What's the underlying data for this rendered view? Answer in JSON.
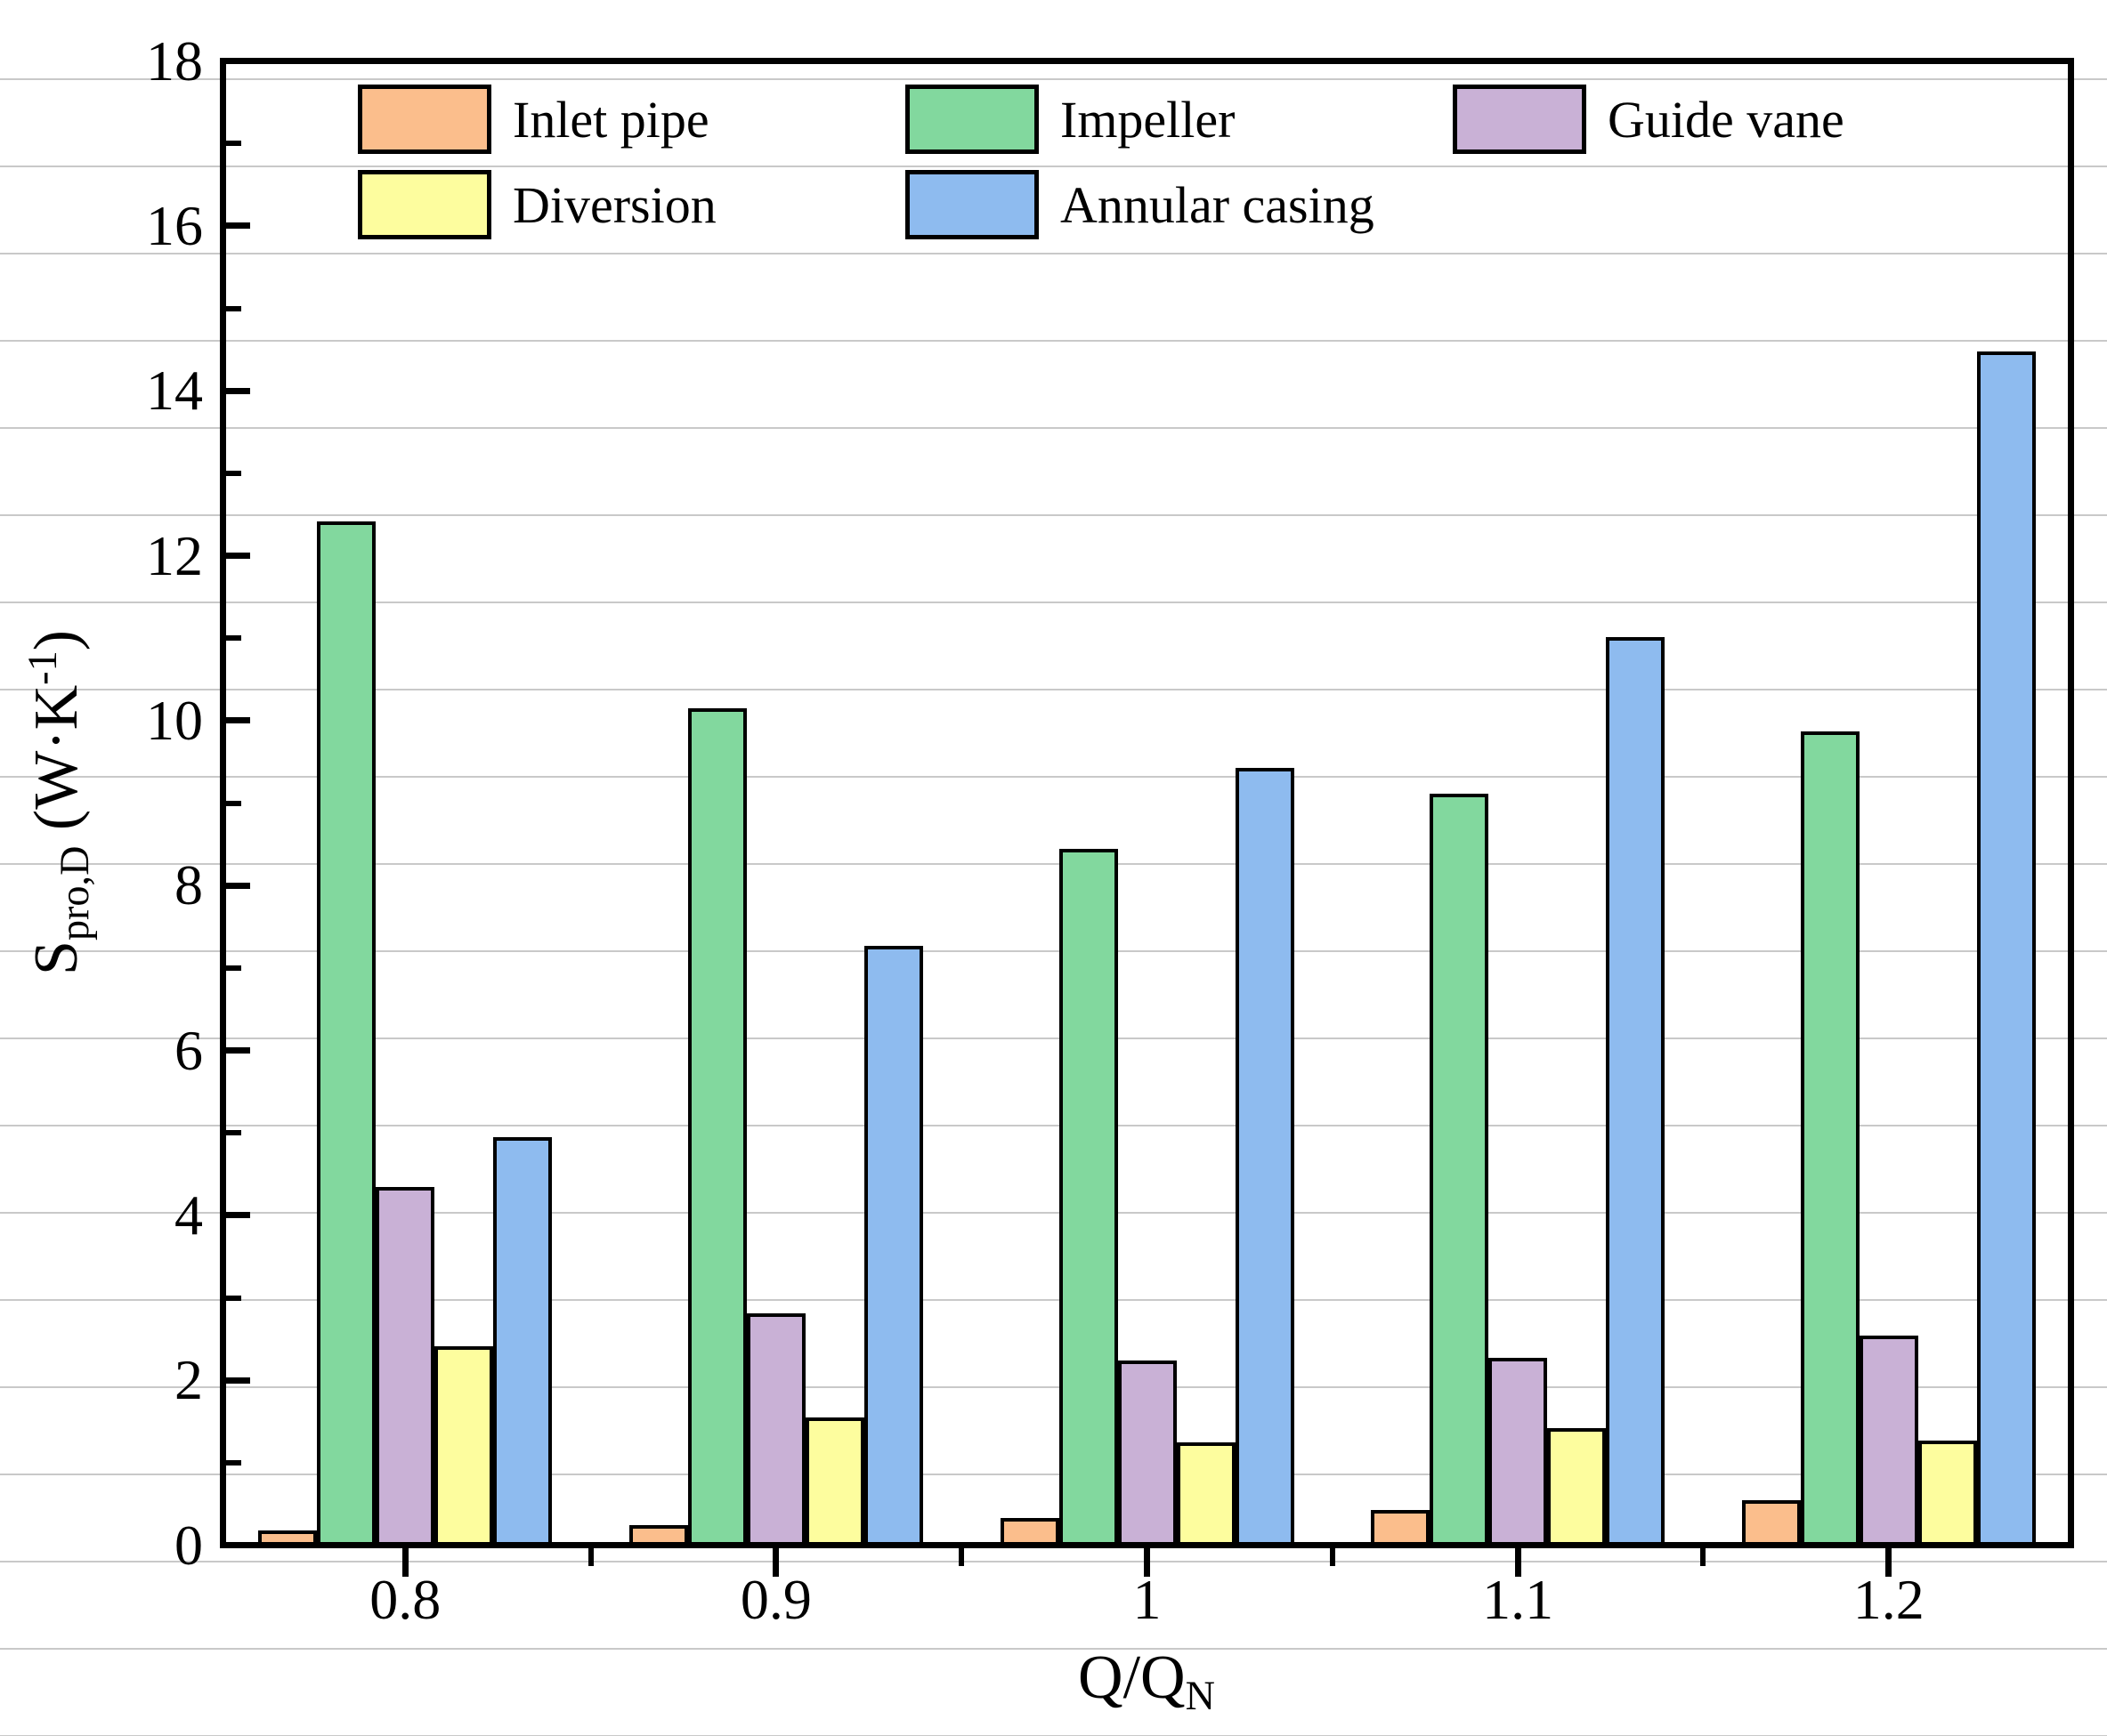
{
  "chart_data": {
    "type": "bar",
    "title": "",
    "categories": [
      "0.8",
      "0.9",
      "1",
      "1.1",
      "1.2"
    ],
    "series": [
      {
        "name": "Inlet pipe",
        "color": "#FBBE8C",
        "values": [
          0.18,
          0.25,
          0.33,
          0.43,
          0.55
        ]
      },
      {
        "name": "Impeller",
        "color": "#82D89E",
        "values": [
          12.42,
          10.15,
          8.45,
          9.12,
          9.87
        ]
      },
      {
        "name": "Guide vane",
        "color": "#C9B1D6",
        "values": [
          4.35,
          2.82,
          2.25,
          2.28,
          2.55
        ]
      },
      {
        "name": "Diversion",
        "color": "#FDFD9E",
        "values": [
          2.42,
          1.55,
          1.25,
          1.42,
          1.27
        ]
      },
      {
        "name": "Annular casing",
        "color": "#8EBBEF",
        "values": [
          4.95,
          7.27,
          9.43,
          11.02,
          14.48
        ]
      }
    ],
    "xlabel_base": "Q/Q",
    "xlabel_sub": "N",
    "ylabel_base": "S",
    "ylabel_sub": "pro,D",
    "ylabel_mid": " (W·K",
    "ylabel_sup": "-1",
    "ylabel_end": ")",
    "ylim": [
      0,
      18
    ],
    "y_major_step": 2,
    "y_minor_step": 1,
    "y_tick_labels": [
      "0",
      "2",
      "4",
      "6",
      "8",
      "10",
      "12",
      "14",
      "16",
      "18"
    ],
    "grid": "faint horizontal rules across full page",
    "legend_position": "inside plot, top-left, two rows"
  },
  "colors": {
    "axis": "#000000",
    "bar_border": "#000000",
    "grid_line": "#c9c9c9",
    "background": "#ffffff"
  }
}
